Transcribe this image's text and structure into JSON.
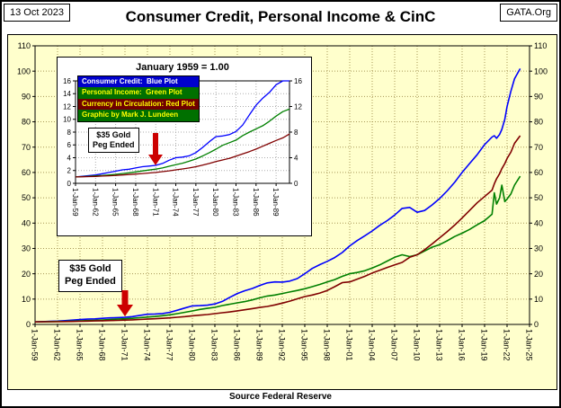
{
  "header": {
    "date": "13 Oct 2023",
    "title": "Consumer Credit, Personal Income & CinC",
    "site": "GATA.Org"
  },
  "footer": {
    "source": "Source Federal Reserve"
  },
  "callout": {
    "line1": "$35 Gold",
    "line2": "Peg Ended"
  },
  "legend": {
    "items": [
      {
        "label": "Consumer Credit:  Blue Plot",
        "bg": "#0000CC",
        "fg": "#FFFFFF"
      },
      {
        "label": "Personal Income:  Green Plot",
        "bg": "#007000",
        "fg": "#FFFF00"
      },
      {
        "label": "Currency in Circulation: Red Plot",
        "bg": "#700000",
        "fg": "#FFFF00"
      },
      {
        "label": "Graphic by Mark J. Lundeen",
        "bg": "#007000",
        "fg": "#FFFF00"
      }
    ]
  },
  "colors": {
    "chart_bg": "#FFFFCC",
    "inset_bg": "#FFFFFF",
    "grid_main": "#A89858",
    "grid_inset": "#ADADAD",
    "arrow": "#CC0000",
    "blue": "#0000FF",
    "green": "#008000",
    "red": "#800000"
  },
  "chart_data": {
    "type": "line",
    "index_note": "January 1959 = 1.00",
    "x": [
      1959,
      1960,
      1961,
      1962,
      1963,
      1964,
      1965,
      1966,
      1967,
      1968,
      1969,
      1970,
      1971,
      1972,
      1973,
      1974,
      1975,
      1976,
      1977,
      1978,
      1979,
      1980,
      1981,
      1982,
      1983,
      1984,
      1985,
      1986,
      1987,
      1988,
      1989,
      1990,
      1991,
      1992,
      1993,
      1994,
      1995,
      1996,
      1997,
      1998,
      1999,
      2000,
      2001,
      2002,
      2003,
      2004,
      2005,
      2006,
      2007,
      2008,
      2009,
      2010,
      2011,
      2012,
      2013,
      2014,
      2015,
      2016,
      2017,
      2018,
      2019,
      2020,
      2020.3,
      2020.6,
      2021,
      2021.3,
      2021.7,
      2022,
      2022.5,
      2023,
      2023.75
    ],
    "series": [
      {
        "name": "Consumer Credit",
        "color": "#0000FF",
        "values": [
          1.0,
          1.1,
          1.2,
          1.3,
          1.5,
          1.7,
          1.9,
          2.1,
          2.2,
          2.4,
          2.6,
          2.7,
          2.8,
          3.1,
          3.6,
          4.0,
          4.1,
          4.3,
          4.8,
          5.6,
          6.5,
          7.3,
          7.4,
          7.6,
          8.1,
          9.1,
          10.7,
          12.2,
          13.3,
          14.2,
          15.4,
          16.4,
          16.8,
          16.7,
          17.1,
          18.1,
          20.0,
          22.1,
          23.6,
          24.9,
          26.4,
          28.4,
          31.0,
          33.1,
          35.0,
          36.9,
          39.1,
          41.0,
          43.2,
          45.8,
          46.2,
          44.3,
          45.0,
          47.2,
          49.7,
          52.7,
          56.1,
          60.0,
          63.5,
          67.0,
          71.0,
          74.0,
          74.5,
          73.5,
          75.0,
          77.0,
          81.0,
          86.0,
          92.0,
          97.0,
          101.0
        ]
      },
      {
        "name": "Personal Income",
        "color": "#008000",
        "values": [
          1.0,
          1.05,
          1.09,
          1.16,
          1.22,
          1.31,
          1.41,
          1.53,
          1.64,
          1.78,
          1.94,
          2.08,
          2.22,
          2.4,
          2.66,
          2.92,
          3.14,
          3.45,
          3.8,
          4.26,
          4.78,
          5.33,
          5.94,
          6.35,
          6.75,
          7.45,
          8.0,
          8.5,
          9.0,
          9.7,
          10.5,
          11.2,
          11.6,
          12.2,
          12.8,
          13.4,
          14.1,
          14.9,
          15.8,
          16.8,
          17.7,
          19.0,
          20.0,
          20.5,
          21.2,
          22.3,
          23.5,
          25.0,
          26.5,
          27.5,
          26.8,
          27.5,
          29.0,
          30.5,
          31.5,
          33.0,
          34.7,
          36.0,
          37.5,
          39.3,
          41.0,
          43.5,
          52.0,
          47.5,
          50.0,
          55.0,
          48.5,
          49.5,
          51.5,
          55.0,
          58.5
        ]
      },
      {
        "name": "Currency in Circulation",
        "color": "#800000",
        "values": [
          1.0,
          1.02,
          1.05,
          1.08,
          1.13,
          1.18,
          1.24,
          1.31,
          1.37,
          1.45,
          1.53,
          1.61,
          1.7,
          1.82,
          1.95,
          2.1,
          2.25,
          2.4,
          2.6,
          2.85,
          3.1,
          3.4,
          3.65,
          3.9,
          4.25,
          4.6,
          4.95,
          5.35,
          5.8,
          6.25,
          6.7,
          7.1,
          7.7,
          8.4,
          9.2,
          10.1,
          11.0,
          11.6,
          12.4,
          13.4,
          14.9,
          16.5,
          16.8,
          17.9,
          19.0,
          20.3,
          21.4,
          22.5,
          23.5,
          24.5,
          26.5,
          27.5,
          29.5,
          31.8,
          34.2,
          36.6,
          39.2,
          42.0,
          45.0,
          48.0,
          50.5,
          53.0,
          55.5,
          57.5,
          59.5,
          61.5,
          63.5,
          65.5,
          68.0,
          71.5,
          74.5
        ]
      }
    ],
    "main_view": {
      "xlim": [
        1959,
        2025
      ],
      "ylim": [
        0,
        110
      ],
      "y_ticks": [
        0,
        10,
        20,
        30,
        40,
        50,
        60,
        70,
        80,
        90,
        100,
        110
      ],
      "x_tick_years": [
        1959,
        1962,
        1965,
        1968,
        1971,
        1974,
        1977,
        1980,
        1983,
        1986,
        1989,
        1992,
        1995,
        1998,
        2001,
        2004,
        2007,
        2010,
        2013,
        2016,
        2019,
        2022,
        2025
      ],
      "x_tick_labels": [
        "1-Jan-59",
        "1-Jan-62",
        "1-Jan-65",
        "1-Jan-68",
        "1-Jan-71",
        "1-Jan-74",
        "1-Jan-77",
        "1-Jan-80",
        "1-Jan-83",
        "1-Jan-86",
        "1-Jan-89",
        "1-Jan-92",
        "1-Jan-95",
        "1-Jan-98",
        "1-Jan-01",
        "1-Jan-04",
        "1-Jan-07",
        "1-Jan-10",
        "1-Jan-13",
        "1-Jan-16",
        "1-Jan-19",
        "1-Jan-22",
        "1-Jan-25"
      ],
      "grid": true
    },
    "inset_view": {
      "title": "January 1959 = 1.00",
      "xlim": [
        1959,
        1991
      ],
      "ylim": [
        0,
        16
      ],
      "y_ticks_left": [
        0,
        2,
        4,
        6,
        8,
        10,
        12,
        14,
        16
      ],
      "y_ticks_right": [
        0,
        4,
        8,
        12,
        16
      ],
      "x_tick_years": [
        1959,
        1962,
        1965,
        1968,
        1971,
        1974,
        1977,
        1980,
        1983,
        1986,
        1989
      ],
      "x_tick_labels": [
        "1-Jan-59",
        "1-Jan-62",
        "1-Jan-65",
        "1-Jan-68",
        "1-Jan-71",
        "1-Jan-74",
        "1-Jan-77",
        "1-Jan-80",
        "1-Jan-83",
        "1-Jan-86",
        "1-Jan-89"
      ],
      "grid": true
    }
  }
}
